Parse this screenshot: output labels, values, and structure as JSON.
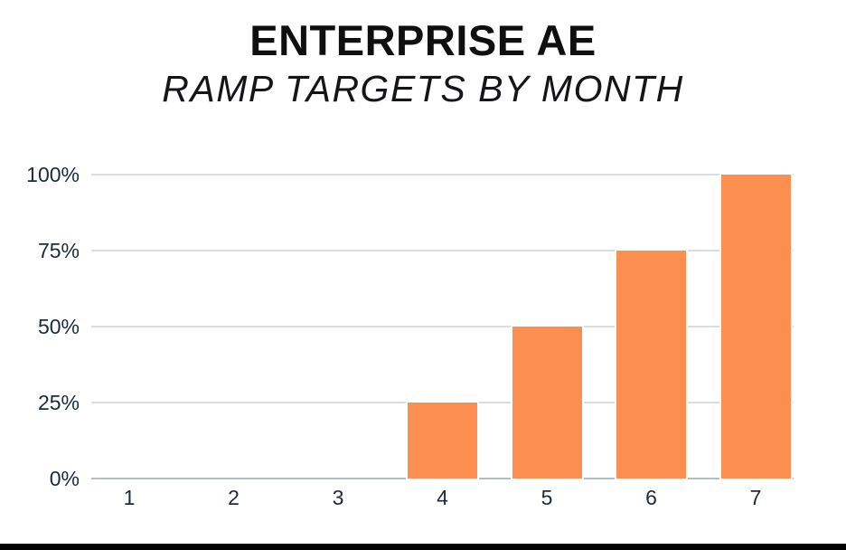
{
  "chart_data": {
    "type": "bar",
    "title": "ENTERPRISE AE",
    "subtitle": "RAMP TARGETS BY MONTH",
    "categories": [
      "1",
      "2",
      "3",
      "4",
      "5",
      "6",
      "7"
    ],
    "values": [
      0,
      0,
      0,
      25,
      50,
      75,
      100
    ],
    "xlabel": "",
    "ylabel": "",
    "ylim": [
      0,
      100
    ],
    "y_tick_values": [
      0,
      25,
      50,
      75,
      100
    ],
    "y_ticks": [
      "0%",
      "25%",
      "50%",
      "75%",
      "100%"
    ],
    "grid": true,
    "legend": false,
    "bar_color": "#fc8e50",
    "gridline_color": "#d9dde2",
    "baseline_color": "#b2bdc5",
    "label_color": "#1b2a3d",
    "title_color": "#0f0f10",
    "background_color": "#ffffff",
    "bottom_border_color": "#000000"
  }
}
